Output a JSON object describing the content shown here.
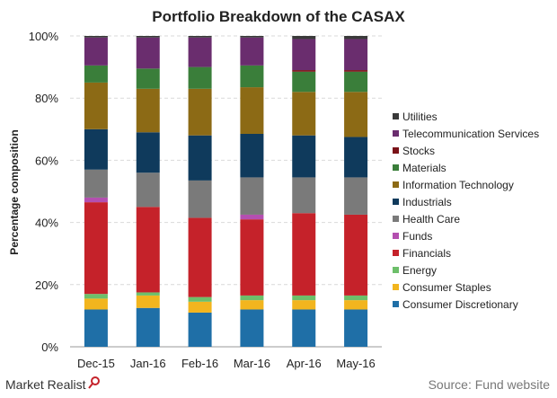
{
  "chart_data": {
    "type": "bar",
    "stacked": true,
    "title": "Portfolio Breakdown of the CASAX",
    "xlabel": "",
    "ylabel": "Percentage composition",
    "ylim": [
      0,
      100
    ],
    "yticks": [
      "0%",
      "20%",
      "40%",
      "60%",
      "80%",
      "100%"
    ],
    "grid": true,
    "legend_position": "right",
    "categories": [
      "Dec-15",
      "Jan-16",
      "Feb-16",
      "Mar-16",
      "Apr-16",
      "May-16"
    ],
    "series": [
      {
        "name": "Consumer Discretionary",
        "color": "#1f6fa7",
        "values": [
          12.0,
          12.5,
          11.0,
          12.0,
          12.0,
          12.0
        ]
      },
      {
        "name": "Consumer Staples",
        "color": "#f2b51e",
        "values": [
          3.5,
          4.0,
          3.5,
          3.0,
          3.0,
          3.0
        ]
      },
      {
        "name": "Energy",
        "color": "#6dbf6a",
        "values": [
          1.5,
          1.0,
          1.5,
          1.5,
          1.5,
          1.5
        ]
      },
      {
        "name": "Financials",
        "color": "#c5222a",
        "values": [
          29.5,
          27.5,
          25.5,
          24.5,
          26.5,
          26.0
        ]
      },
      {
        "name": "Funds",
        "color": "#b44fb0",
        "values": [
          1.5,
          0.0,
          0.0,
          1.5,
          0.0,
          0.0
        ]
      },
      {
        "name": "Health Care",
        "color": "#7a7a7a",
        "values": [
          9.0,
          11.0,
          12.0,
          12.0,
          11.5,
          12.0
        ]
      },
      {
        "name": "Industrials",
        "color": "#0f3a5c",
        "values": [
          13.0,
          13.0,
          14.5,
          14.0,
          13.5,
          13.0
        ]
      },
      {
        "name": "Information Technology",
        "color": "#8c6a15",
        "values": [
          15.0,
          14.0,
          15.0,
          15.0,
          14.0,
          14.5
        ]
      },
      {
        "name": "Materials",
        "color": "#3a7e3a",
        "values": [
          5.5,
          6.5,
          7.0,
          7.0,
          6.5,
          6.5
        ]
      },
      {
        "name": "Stocks",
        "color": "#7a1218",
        "values": [
          0.0,
          0.0,
          0.0,
          0.0,
          0.5,
          0.5
        ]
      },
      {
        "name": "Telecommunication Services",
        "color": "#6a2d6e",
        "values": [
          9.0,
          10.0,
          9.5,
          9.0,
          10.0,
          10.0
        ]
      },
      {
        "name": "Utilities",
        "color": "#3a3a3a",
        "values": [
          0.5,
          0.5,
          0.5,
          0.5,
          1.0,
          1.0
        ]
      }
    ]
  },
  "footer": {
    "brand": "Market Realist",
    "source": "Source: Fund website"
  }
}
